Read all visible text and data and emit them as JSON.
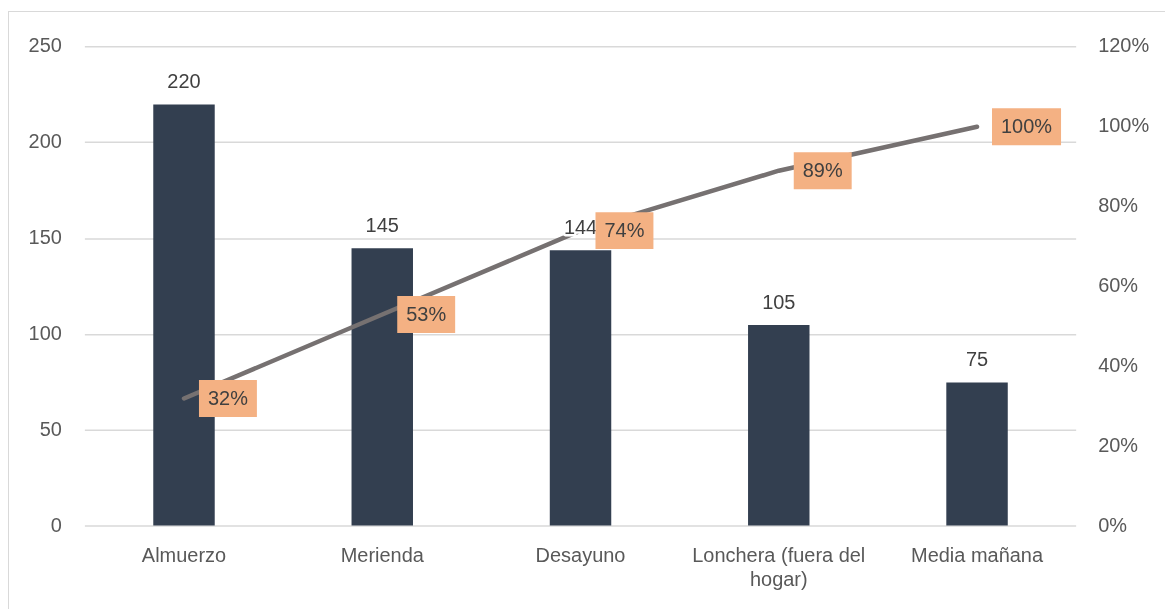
{
  "chart_data": {
    "type": "bar",
    "categories": [
      "Almuerzo",
      "Merienda",
      "Desayuno",
      "Lonchera (fuera del hogar)",
      "Media mañana"
    ],
    "series": [
      {
        "color": "#333f50",
        "values": [
          220,
          145,
          144,
          105,
          75
        ],
        "value_labels": [
          "220",
          "145",
          "144",
          "105",
          "75"
        ]
      },
      {
        "type": "line",
        "axis": "y2",
        "color": "#767171",
        "values": [
          32,
          53,
          74,
          89,
          100
        ],
        "value_labels": [
          "32%",
          "53%",
          "74%",
          "89%",
          "100%"
        ]
      }
    ],
    "ylim": [
      0,
      250
    ],
    "yticks": [
      0,
      50,
      100,
      150,
      200,
      250
    ],
    "y2lim": [
      0,
      120
    ],
    "y2ticks": [
      {
        "value": 0,
        "label": "0%"
      },
      {
        "value": 20,
        "label": "20%"
      },
      {
        "value": 40,
        "label": "40%"
      },
      {
        "value": 60,
        "label": "60%"
      },
      {
        "value": 80,
        "label": "80%"
      },
      {
        "value": 100,
        "label": "100%"
      },
      {
        "value": 120,
        "label": "120%"
      }
    ],
    "grid": "y",
    "legend": false,
    "marker": "none"
  }
}
